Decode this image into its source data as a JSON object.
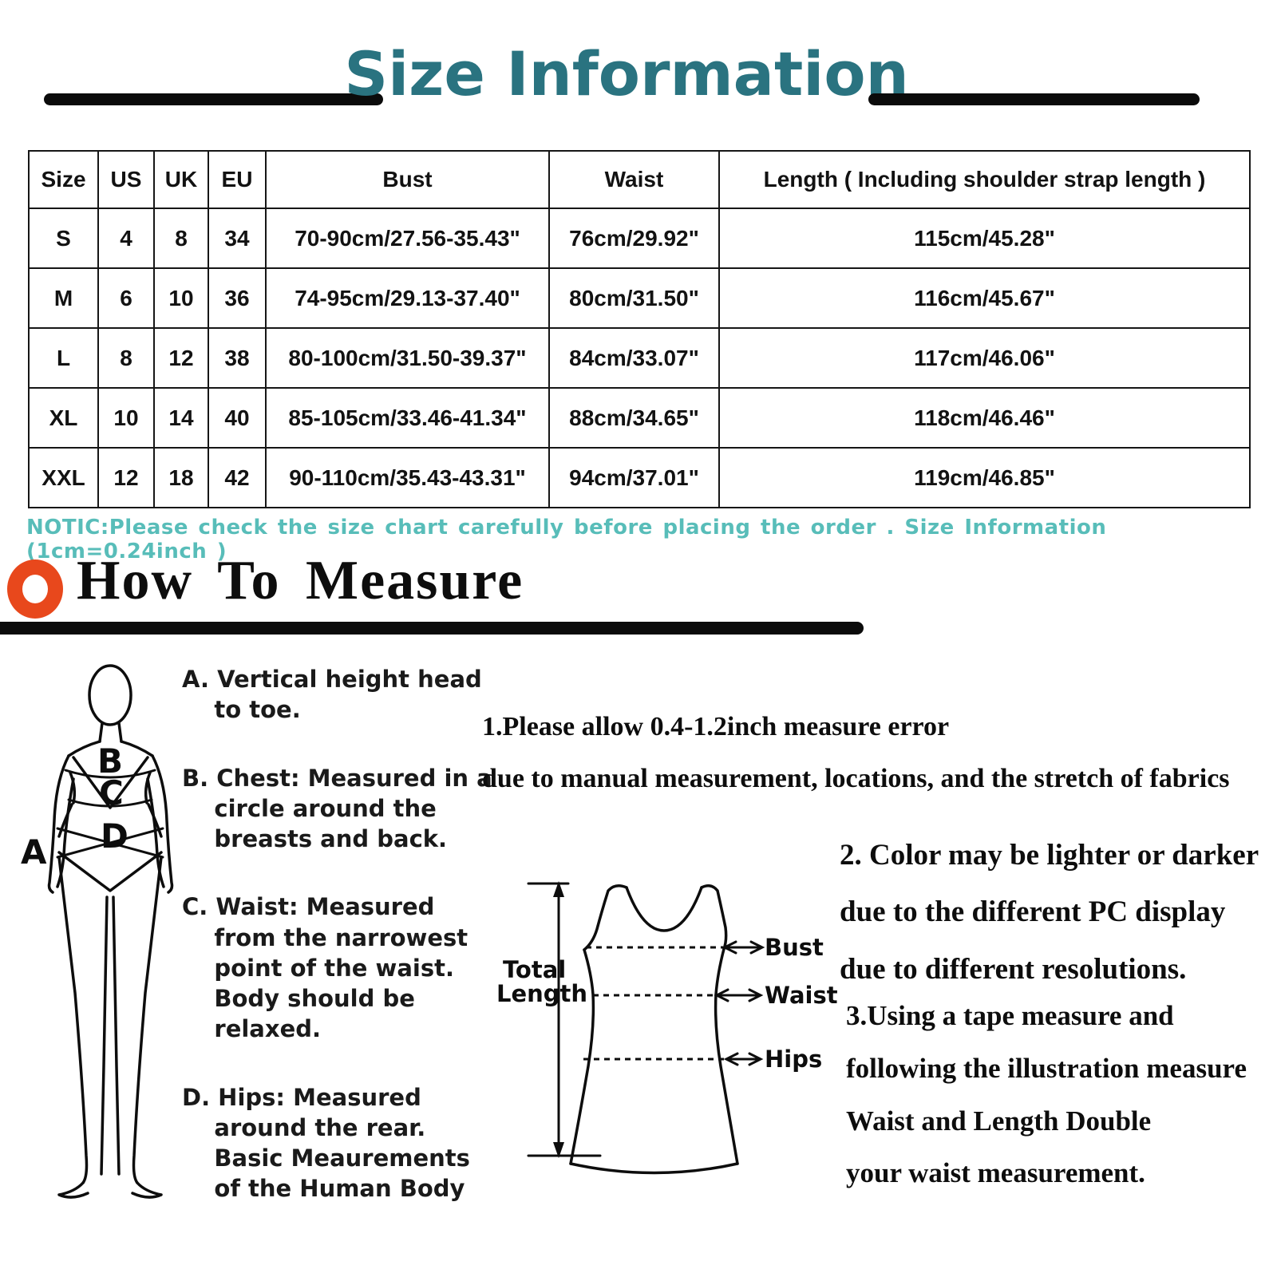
{
  "title": "Size Information",
  "size_table": {
    "headers": [
      "Size",
      "US",
      "UK",
      "EU",
      "Bust",
      "Waist",
      "Length ( Including shoulder strap length )"
    ],
    "rows": [
      [
        "S",
        "4",
        "8",
        "34",
        "70-90cm/27.56-35.43\"",
        "76cm/29.92\"",
        "115cm/45.28\""
      ],
      [
        "M",
        "6",
        "10",
        "36",
        "74-95cm/29.13-37.40\"",
        "80cm/31.50\"",
        "116cm/45.67\""
      ],
      [
        "L",
        "8",
        "12",
        "38",
        "80-100cm/31.50-39.37\"",
        "84cm/33.07\"",
        "117cm/46.06\""
      ],
      [
        "XL",
        "10",
        "14",
        "40",
        "85-105cm/33.46-41.34\"",
        "88cm/34.65\"",
        "118cm/46.46\""
      ],
      [
        "XXL",
        "12",
        "18",
        "42",
        "90-110cm/35.43-43.31\"",
        "94cm/37.01\"",
        "119cm/46.85\""
      ]
    ]
  },
  "notice": "NOTIC:Please check the size chart carefully before placing the order . Size Information (1cm=0.24inch )",
  "how_to_measure": {
    "heading": "How To Measure"
  },
  "measure_steps": [
    {
      "text": "A. Vertical height head\n    to toe."
    },
    {
      "text": "B. Chest: Measured in a\n    circle around the\n    breasts and back."
    },
    {
      "text": "C. Waist: Measured\n    from the narrowest\n    point of the waist.\n    Body should be\n    relaxed."
    },
    {
      "text": "D. Hips: Measured\n    around the rear.\n    Basic Meaurements\n    of the Human Body"
    }
  ],
  "figure_labels": {
    "a": "A",
    "b": "B",
    "c": "C",
    "d": "D"
  },
  "dress_diagram": {
    "total_length_line1": "Total",
    "total_length_line2": "Length",
    "bust": "Bust",
    "waist": "Waist",
    "hips": "Hips"
  },
  "notes": [
    {
      "text": "1.Please allow 0.4-1.2inch measure error\ndue to manual measurement, locations, and the stretch of fabrics"
    },
    {
      "text": "2. Color may be lighter or darker\ndue to the different PC display\ndue to different resolutions."
    },
    {
      "text": "3.Using a tape measure and\nfollowing the illustration measure\nWaist and Length Double\nyour waist measurement."
    }
  ],
  "colors": {
    "title_teal": "#2a7380",
    "notice_teal": "#58bdb9",
    "ring_orange": "#e8481c",
    "ink_black": "#0d0d0d"
  }
}
